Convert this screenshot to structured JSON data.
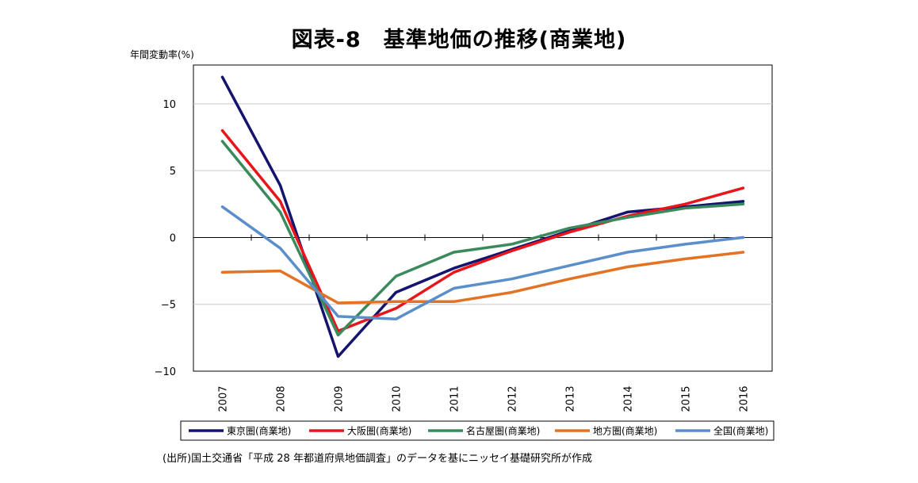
{
  "chart_data": {
    "type": "line",
    "title": "図表-8　基準地価の推移(商業地)",
    "ylabel": "年間変動率(%)",
    "xlabel": "",
    "categories": [
      "2007",
      "2008",
      "2009",
      "2010",
      "2011",
      "2012",
      "2013",
      "2014",
      "2015",
      "2016"
    ],
    "ylim": [
      -10,
      12.9
    ],
    "yticks": [
      10,
      5,
      0,
      -5,
      -10
    ],
    "ytick_labels": [
      "10",
      "5",
      "0",
      "−5",
      "−10"
    ],
    "grid": true,
    "legend_position": "bottom",
    "series": [
      {
        "name": "東京圏(商業地)",
        "color": "#14146e",
        "values": [
          12.0,
          3.9,
          -8.9,
          -4.1,
          -2.3,
          -0.9,
          0.5,
          1.9,
          2.3,
          2.7
        ]
      },
      {
        "name": "大阪圏(商業地)",
        "color": "#e8161b",
        "values": [
          8.0,
          2.7,
          -7.0,
          -5.3,
          -2.6,
          -1.0,
          0.4,
          1.6,
          2.5,
          3.7
        ]
      },
      {
        "name": "名古屋圏(商業地)",
        "color": "#3a8a5c",
        "values": [
          7.2,
          1.9,
          -7.3,
          -2.9,
          -1.1,
          -0.5,
          0.7,
          1.5,
          2.2,
          2.5
        ]
      },
      {
        "name": "地方圏(商業地)",
        "color": "#e27324",
        "values": [
          -2.6,
          -2.5,
          -4.9,
          -4.8,
          -4.8,
          -4.1,
          -3.1,
          -2.2,
          -1.6,
          -1.1
        ]
      },
      {
        "name": "全国(商業地)",
        "color": "#5b8fcb",
        "values": [
          2.3,
          -0.8,
          -5.9,
          -6.1,
          -3.8,
          -3.1,
          -2.1,
          -1.1,
          -0.5,
          0.0
        ]
      }
    ]
  },
  "source": "(出所)国土交通省「平成 28 年都道府県地価調査」のデータを基にニッセイ基礎研究所が作成"
}
